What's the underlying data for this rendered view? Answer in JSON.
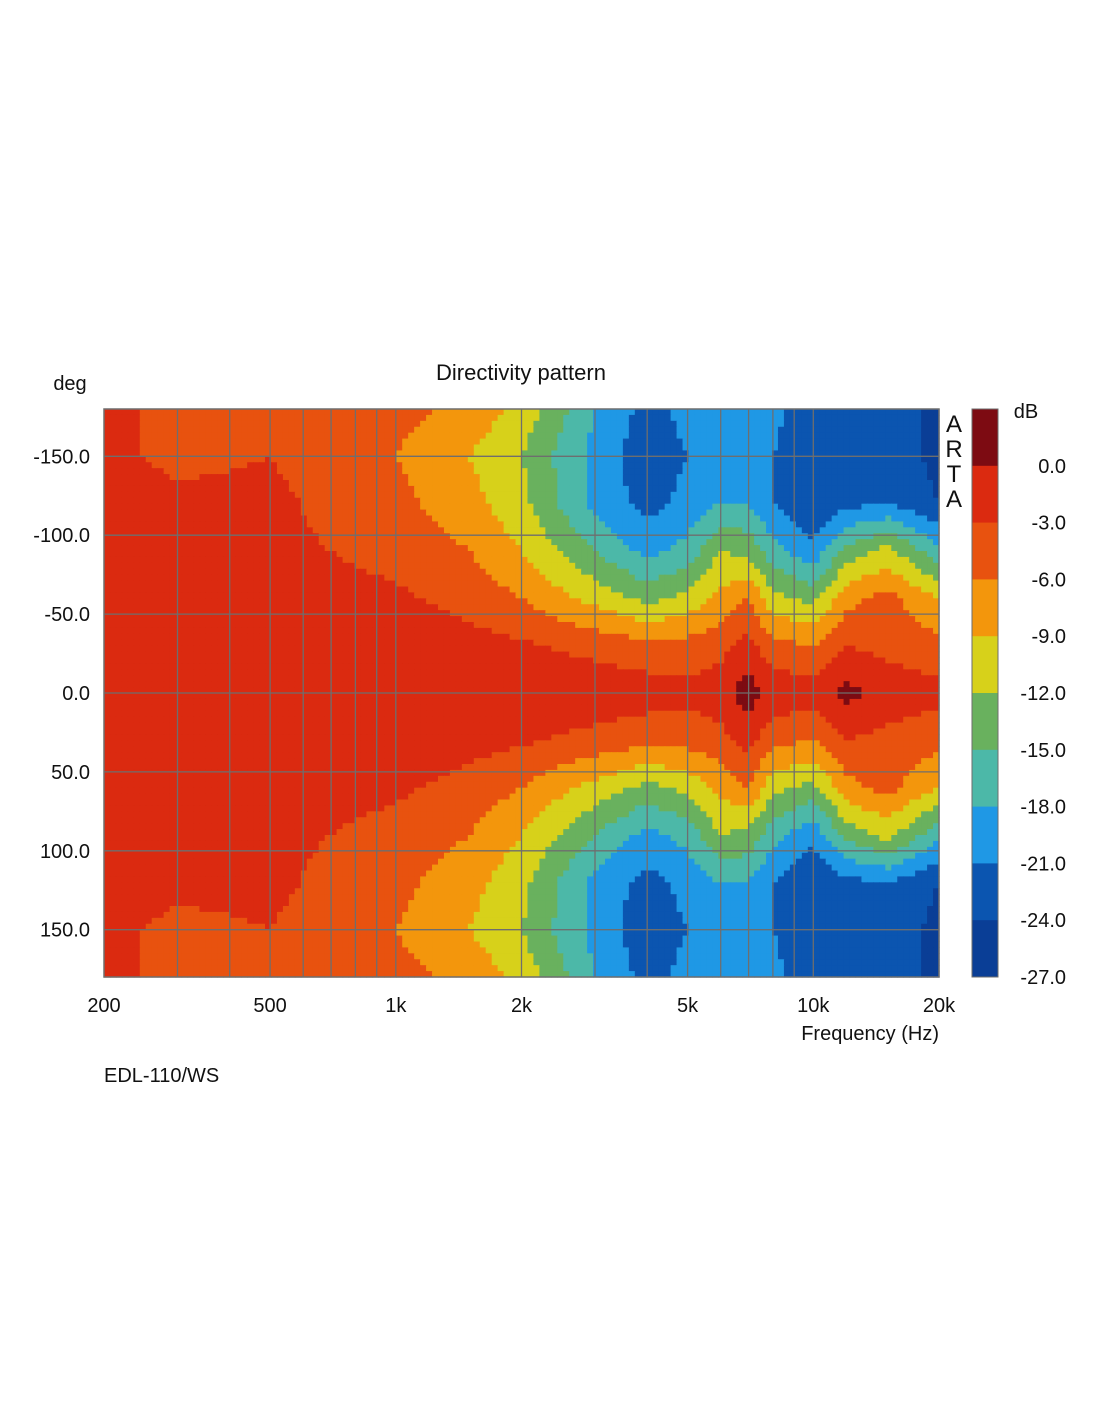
{
  "chart_data": {
    "type": "heatmap",
    "title": "Directivity pattern",
    "ylabel": "deg",
    "xlabel": "Frequency (Hz)",
    "colorbar_label": "dB",
    "watermark": "ARTA",
    "footer": "EDL-110/WS",
    "x_scale": "log",
    "xlim": [
      200,
      20000
    ],
    "ylim": [
      -180,
      180
    ],
    "y_inverted": true,
    "grid": true,
    "x_ticks": [
      {
        "value": 200,
        "label": "200"
      },
      {
        "value": 500,
        "label": "500"
      },
      {
        "value": 1000,
        "label": "1k"
      },
      {
        "value": 2000,
        "label": "2k"
      },
      {
        "value": 5000,
        "label": "5k"
      },
      {
        "value": 10000,
        "label": "10k"
      },
      {
        "value": 20000,
        "label": "20k"
      }
    ],
    "y_ticks": [
      {
        "value": -150,
        "label": "-150.0"
      },
      {
        "value": -100,
        "label": "-100.0"
      },
      {
        "value": -50,
        "label": "-50.0"
      },
      {
        "value": 0,
        "label": "0.0"
      },
      {
        "value": 50,
        "label": "50.0"
      },
      {
        "value": 100,
        "label": "100.0"
      },
      {
        "value": 150,
        "label": "150.0"
      }
    ],
    "colorbar": {
      "levels": [
        {
          "label": "",
          "color": "#7d0b12"
        },
        {
          "label": "0.0",
          "color": "#db2a10"
        },
        {
          "label": "-3.0",
          "color": "#e8520f"
        },
        {
          "label": "-6.0",
          "color": "#f3960c"
        },
        {
          "label": "-9.0",
          "color": "#d7d11a"
        },
        {
          "label": "-12.0",
          "color": "#69b15e"
        },
        {
          "label": "-15.0",
          "color": "#4cb8a8"
        },
        {
          "label": "-18.0",
          "color": "#1f98e5"
        },
        {
          "label": "-21.0",
          "color": "#0b55b0"
        },
        {
          "label": "-24.0",
          "color": "#0a3e96"
        },
        {
          "label": "-27.0",
          "color": ""
        }
      ]
    },
    "frequencies": [
      200,
      300,
      500,
      700,
      1000,
      1500,
      2000,
      3000,
      4000,
      5000,
      6000,
      7000,
      8000,
      10000,
      12000,
      15000,
      20000
    ],
    "angles": [
      -180,
      -150,
      -120,
      -90,
      -60,
      -30,
      0,
      30,
      60,
      90,
      120,
      150,
      180
    ],
    "level_db": [
      [
        -2.5,
        -3.5,
        -3,
        -4,
        -5,
        -7,
        -10,
        -18,
        -22,
        -20,
        -19,
        -18,
        -20,
        -23,
        -24,
        -22,
        -25
      ],
      [
        -2.5,
        -3.5,
        -3,
        -4,
        -6,
        -9,
        -12,
        -19,
        -23,
        -21,
        -19,
        -18,
        -21,
        -24,
        -23,
        -22,
        -25
      ],
      [
        -2,
        -2.5,
        -2.5,
        -3.5,
        -5,
        -8,
        -11,
        -19,
        -22,
        -20,
        -18,
        -18,
        -21,
        -24,
        -22,
        -21,
        -24
      ],
      [
        -1.5,
        -2,
        -2.5,
        -3,
        -4,
        -6,
        -9,
        -15,
        -19,
        -17,
        -12,
        -13,
        -17,
        -20,
        -14,
        -11,
        -17
      ],
      [
        -1,
        -1.5,
        -2,
        -2,
        -2.5,
        -4,
        -6,
        -10,
        -13,
        -11,
        -8,
        -6,
        -11,
        -13,
        -7,
        -5,
        -9
      ],
      [
        -0.5,
        -1,
        -1,
        -1,
        -1,
        -2,
        -2.5,
        -4,
        -5,
        -5,
        -4,
        -2,
        -5,
        -6,
        -3,
        -4,
        -5
      ],
      [
        0,
        -0.5,
        -0.5,
        -0.5,
        -0.5,
        -0.5,
        -0.5,
        -1,
        -1.5,
        -2,
        -1,
        1.5,
        -1,
        -1.5,
        0.8,
        -1,
        -2
      ],
      [
        -0.5,
        -1,
        -1,
        -1,
        -1,
        -2,
        -2.5,
        -4,
        -5,
        -5,
        -4,
        -2,
        -5,
        -6,
        -3,
        -4,
        -5
      ],
      [
        -1,
        -1.5,
        -2,
        -2,
        -2.5,
        -4,
        -6,
        -10,
        -13,
        -11,
        -8,
        -6,
        -11,
        -13,
        -7,
        -5,
        -9
      ],
      [
        -1.5,
        -2,
        -2.5,
        -3,
        -4,
        -6,
        -9,
        -15,
        -19,
        -17,
        -12,
        -13,
        -17,
        -20,
        -14,
        -11,
        -17
      ],
      [
        -2,
        -2.5,
        -2.5,
        -3.5,
        -5,
        -8,
        -11,
        -19,
        -22,
        -20,
        -18,
        -18,
        -21,
        -24,
        -22,
        -21,
        -24
      ],
      [
        -2.5,
        -3.5,
        -3,
        -4,
        -6,
        -9,
        -12,
        -19,
        -23,
        -21,
        -19,
        -18,
        -21,
        -24,
        -23,
        -22,
        -25
      ],
      [
        -2.5,
        -3.5,
        -3,
        -4,
        -5,
        -7,
        -10,
        -18,
        -22,
        -20,
        -19,
        -18,
        -20,
        -23,
        -24,
        -22,
        -25
      ]
    ]
  }
}
